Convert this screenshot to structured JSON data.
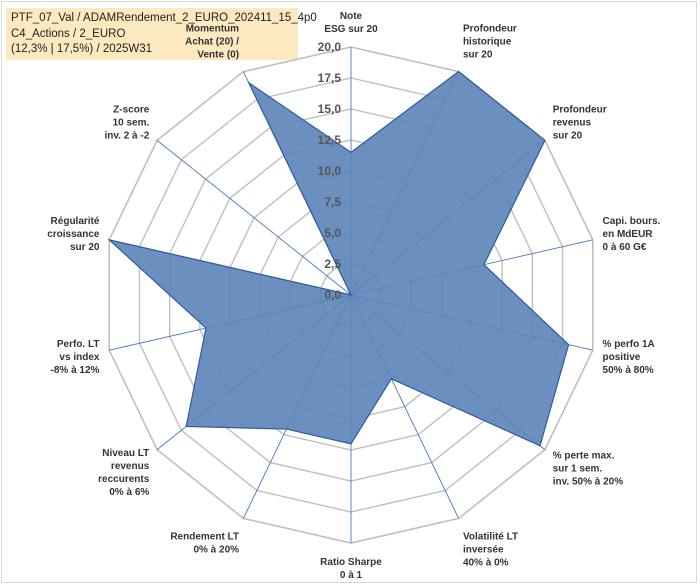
{
  "header": {
    "line1": "PTF_07_Val / ADAMRendement_2_EURO_202411_15_4p0",
    "line2": "C4_Actions / 2_EURO",
    "line3": "(12,3% | 17,5%) / 2025W31"
  },
  "chart_data": {
    "type": "radar",
    "rmin": 0,
    "rmax": 20,
    "ticks": [
      "0,0",
      "2,5",
      "5,0",
      "7,5",
      "10,0",
      "12,5",
      "15,0",
      "17,5",
      "20,0"
    ],
    "axes": [
      {
        "label": [
          "Note",
          "ESG sur 20"
        ],
        "value": 11.5
      },
      {
        "label": [
          "Profondeur",
          "historique",
          "sur 20"
        ],
        "value": 20
      },
      {
        "label": [
          "Profondeur",
          "revenus",
          "sur 20"
        ],
        "value": 20
      },
      {
        "label": [
          "Capi. bours.",
          "en MdEUR",
          "0 à 60 G€"
        ],
        "value": 11
      },
      {
        "label": [
          "% perfo 1A",
          "positive",
          "50% à 80%"
        ],
        "value": 18
      },
      {
        "label": [
          "% perte max.",
          "sur 1 sem.",
          "inv. 50% à 20%"
        ],
        "value": 19.5
      },
      {
        "label": [
          "Volatilité LT",
          "inversée",
          "40% à 0%"
        ],
        "value": 7.5
      },
      {
        "label": [
          "Ratio Sharpe",
          "0 à 1"
        ],
        "value": 12
      },
      {
        "label": [
          "Rendement LT",
          "0% à 20%"
        ],
        "value": 12
      },
      {
        "label": [
          "Niveau LT",
          "revenus",
          "reccurents",
          "0% à 6%"
        ],
        "value": 17
      },
      {
        "label": [
          "Perfo. LT",
          "vs index",
          "-8% à 12%"
        ],
        "value": 12
      },
      {
        "label": [
          "Régularité",
          "croissance",
          "sur 20"
        ],
        "value": 20
      },
      {
        "label": [
          "Z-score",
          "10 sem.",
          "inv. 2 à -2"
        ],
        "value": 0
      },
      {
        "label": [
          "Momentum",
          "Achat (20) /",
          "Vente (0)"
        ],
        "value": 19
      }
    ],
    "colors": {
      "fill": "#5b84b8",
      "stroke": "#2f5aa0",
      "grid": "#bfbfbf",
      "spoke": "#4a78c2"
    }
  }
}
